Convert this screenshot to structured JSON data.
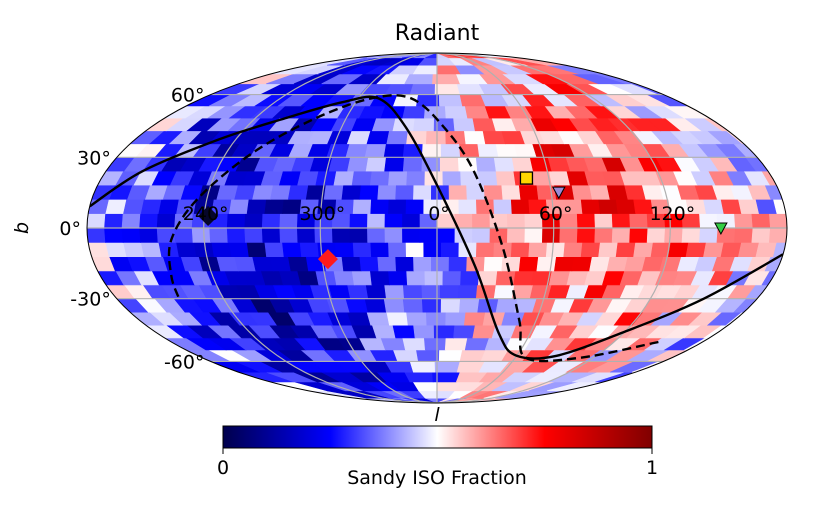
{
  "chart_data": {
    "type": "heatmap",
    "projection": "mollweide",
    "title": "Radiant",
    "xlabel": "l",
    "ylabel": "b",
    "x_ticks": [
      "120°",
      "60°",
      "0°",
      "300°",
      "240°"
    ],
    "y_ticks": [
      "60°",
      "30°",
      "0°",
      "-30°",
      "-60°"
    ],
    "x_tick_values": [
      120,
      60,
      0,
      -60,
      -120
    ],
    "y_tick_values": [
      60,
      30,
      0,
      -30,
      -60
    ],
    "colorbar": {
      "label": "Sandy ISO Fraction",
      "min_label": "0",
      "max_label": "1",
      "range": [
        0,
        1
      ],
      "colormap": "seismic",
      "stops": [
        "#00004c",
        "#0000ff",
        "#ffffff",
        "#ff0000",
        "#800000"
      ]
    },
    "field_description": "Sandy ISO fraction per sky cell; higher (red) toward the galactic-east half l 30°-150°, lower (blue) toward l 180°-330°",
    "regional_mean_fraction": [
      {
        "l_center": 90,
        "b_center": 15,
        "value": 0.72
      },
      {
        "l_center": 60,
        "b_center": 10,
        "value": 0.78
      },
      {
        "l_center": 120,
        "b_center": 0,
        "value": 0.62
      },
      {
        "l_center": 0,
        "b_center": 0,
        "value": 0.35
      },
      {
        "l_center": -60,
        "b_center": 0,
        "value": 0.18
      },
      {
        "l_center": -120,
        "b_center": 20,
        "value": 0.22
      },
      {
        "l_center": -90,
        "b_center": -30,
        "value": 0.15
      }
    ],
    "markers": [
      {
        "name": "yellow-square",
        "shape": "square",
        "l": 48,
        "b": 21,
        "color": "#ffd700"
      },
      {
        "name": "purple-triangle",
        "shape": "triangle-down",
        "l": 64,
        "b": 15,
        "color": "#9a8bd6"
      },
      {
        "name": "green-triangle",
        "shape": "triangle-down",
        "l": 146,
        "b": 0,
        "color": "#33cc44"
      },
      {
        "name": "red-diamond",
        "shape": "diamond",
        "l": -57,
        "b": -13,
        "color": "#ff1a1a"
      },
      {
        "name": "dark-diamond",
        "shape": "diamond",
        "l": -118,
        "b": 5,
        "color": "#06062a"
      }
    ],
    "curves": [
      {
        "name": "solid-curve",
        "style": "solid",
        "points": [
          [
            180,
            -11
          ],
          [
            150,
            -30
          ],
          [
            120,
            -45
          ],
          [
            90,
            -57
          ],
          [
            60,
            -57
          ],
          [
            40,
            -46
          ],
          [
            20,
            -16
          ],
          [
            0,
            18
          ],
          [
            -20,
            44
          ],
          [
            -45,
            58
          ],
          [
            -70,
            56
          ],
          [
            -100,
            48
          ],
          [
            -130,
            38
          ],
          [
            -160,
            24
          ],
          [
            -180,
            9
          ]
        ]
      },
      {
        "name": "dashed-curve",
        "style": "dashed",
        "points": [
          [
            150,
            -50
          ],
          [
            110,
            -58
          ],
          [
            68,
            -58
          ],
          [
            50,
            -40
          ],
          [
            34,
            -8
          ],
          [
            20,
            24
          ],
          [
            4,
            44
          ],
          [
            -20,
            58
          ],
          [
            -50,
            58
          ],
          [
            -80,
            48
          ],
          [
            -105,
            32
          ],
          [
            -125,
            12
          ],
          [
            -137,
            -5
          ],
          [
            -142,
            -20
          ],
          [
            -145,
            -30
          ]
        ]
      }
    ]
  }
}
